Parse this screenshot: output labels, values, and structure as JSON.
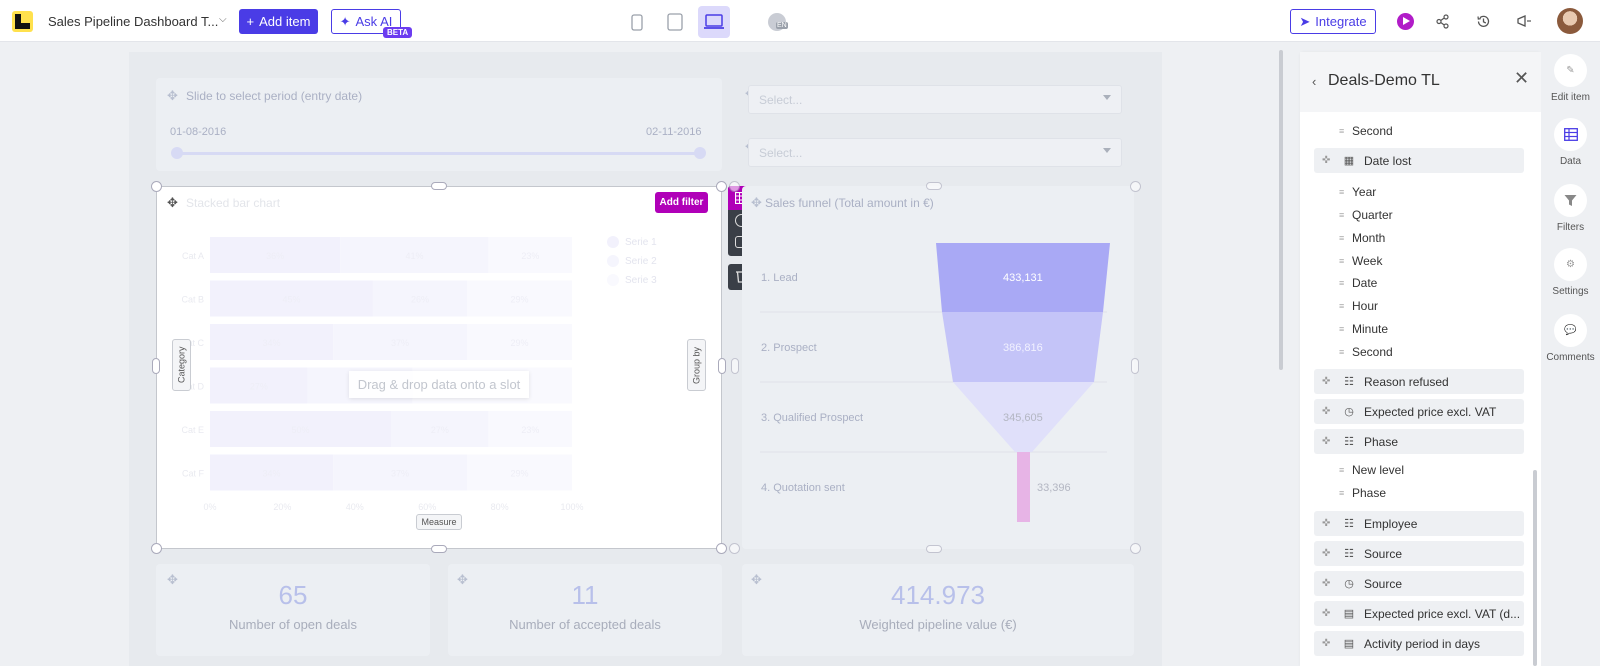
{
  "topbar": {
    "doc_title": "Sales Pipeline Dashboard T...",
    "add_item": "Add item",
    "ask_ai": "Ask AI",
    "beta": "BETA",
    "lang": "EN",
    "integrate": "Integrate"
  },
  "slider": {
    "title": "Slide to select period (entry date)",
    "start": "01-08-2016",
    "end": "02-11-2016"
  },
  "selects": [
    {
      "placeholder": "Select..."
    },
    {
      "placeholder": "Select..."
    }
  ],
  "chart_card": {
    "title": "Stacked bar chart",
    "add_filter": "Add filter",
    "category_slot": "Category",
    "group_slot": "Group by",
    "measure_slot": "Measure",
    "drop_hint": "Drag & drop data onto a slot",
    "legend": [
      "Serie 1",
      "Serie 2",
      "Serie 3"
    ]
  },
  "chart_data": {
    "type": "bar",
    "title": "Stacked bar chart",
    "categories": [
      "Cat A",
      "Cat B",
      "Cat C",
      "Cat D",
      "Cat E",
      "Cat F"
    ],
    "x_ticks": [
      "0%",
      "20%",
      "40%",
      "60%",
      "80%",
      "100%"
    ],
    "xlim": [
      0,
      100
    ],
    "series": [
      {
        "name": "Serie 1",
        "values": [
          36,
          45,
          34,
          27,
          50,
          34
        ]
      },
      {
        "name": "Serie 2",
        "values": [
          41,
          26,
          37,
          29,
          27,
          37
        ]
      },
      {
        "name": "Serie 3",
        "values": [
          23,
          29,
          29,
          44,
          23,
          29
        ]
      }
    ],
    "legend_position": "top-right"
  },
  "funnel": {
    "title": "Sales funnel (Total amount in €)",
    "stages": [
      {
        "label": "1. Lead",
        "value": "433,131"
      },
      {
        "label": "2. Prospect",
        "value": "386,816"
      },
      {
        "label": "3. Qualified Prospect",
        "value": "345,605"
      },
      {
        "label": "4. Quotation sent",
        "value": "33,396"
      }
    ]
  },
  "kpis": [
    {
      "value": "65",
      "label": "Number of open deals"
    },
    {
      "value": "11",
      "label": "Number of accepted deals"
    },
    {
      "value": "414.973",
      "label": "Weighted pipeline value (€)"
    }
  ],
  "panel": {
    "title": "Deals-Demo TL",
    "items": [
      {
        "kind": "sub",
        "label": "Second"
      },
      {
        "kind": "group",
        "icon": "calendar-icon",
        "label": "Date lost"
      },
      {
        "kind": "sub",
        "label": "Year"
      },
      {
        "kind": "sub",
        "label": "Quarter"
      },
      {
        "kind": "sub",
        "label": "Month"
      },
      {
        "kind": "sub",
        "label": "Week"
      },
      {
        "kind": "sub",
        "label": "Date"
      },
      {
        "kind": "sub",
        "label": "Hour"
      },
      {
        "kind": "sub",
        "label": "Minute"
      },
      {
        "kind": "sub",
        "label": "Second"
      },
      {
        "kind": "group",
        "icon": "hierarchy-icon",
        "label": "Reason refused"
      },
      {
        "kind": "group",
        "icon": "clock-icon",
        "label": "Expected price excl. VAT"
      },
      {
        "kind": "group",
        "icon": "hierarchy-icon",
        "label": "Phase"
      },
      {
        "kind": "sub",
        "label": "New level"
      },
      {
        "kind": "sub",
        "label": "Phase"
      },
      {
        "kind": "group",
        "icon": "hierarchy-icon",
        "label": "Employee"
      },
      {
        "kind": "group",
        "icon": "hierarchy-icon",
        "label": "Source"
      },
      {
        "kind": "group",
        "icon": "clock-icon",
        "label": "Source"
      },
      {
        "kind": "group",
        "icon": "calculator-icon",
        "label": "Expected price excl. VAT (d..."
      },
      {
        "kind": "group",
        "icon": "calculator-icon",
        "label": "Activity period in days"
      }
    ]
  },
  "rail": [
    {
      "label": "Edit item",
      "icon": "edit-icon"
    },
    {
      "label": "Data",
      "icon": "table-icon"
    },
    {
      "label": "Filters",
      "icon": "filter-icon"
    },
    {
      "label": "Settings",
      "icon": "gear-icon"
    },
    {
      "label": "Comments",
      "icon": "comment-icon"
    }
  ]
}
